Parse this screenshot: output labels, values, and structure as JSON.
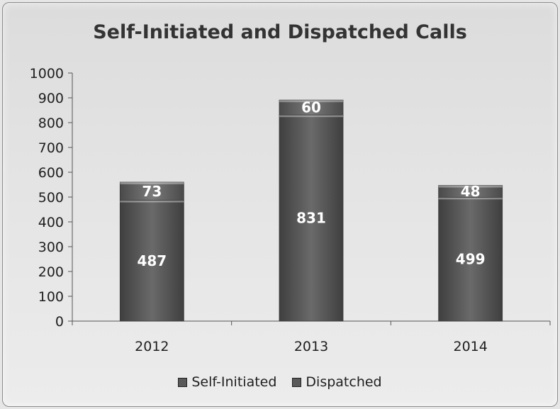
{
  "chart_data": {
    "type": "bar",
    "stacked": true,
    "title": "Self-Initiated and Dispatched Calls",
    "categories": [
      "2012",
      "2013",
      "2014"
    ],
    "series": [
      {
        "name": "Self-Initiated",
        "values": [
          487,
          831,
          499
        ],
        "color": "#5c5c5c"
      },
      {
        "name": "Dispatched",
        "values": [
          73,
          60,
          48
        ],
        "color": "#6a6a6a"
      }
    ],
    "ylim": [
      0,
      1000
    ],
    "yticks": [
      "0",
      "100",
      "200",
      "300",
      "400",
      "500",
      "600",
      "700",
      "800",
      "900",
      "1000"
    ],
    "data_labels": [
      [
        "487",
        "831",
        "499"
      ],
      [
        "73",
        "60",
        "48"
      ]
    ],
    "legend_position": "bottom",
    "grid": false
  }
}
